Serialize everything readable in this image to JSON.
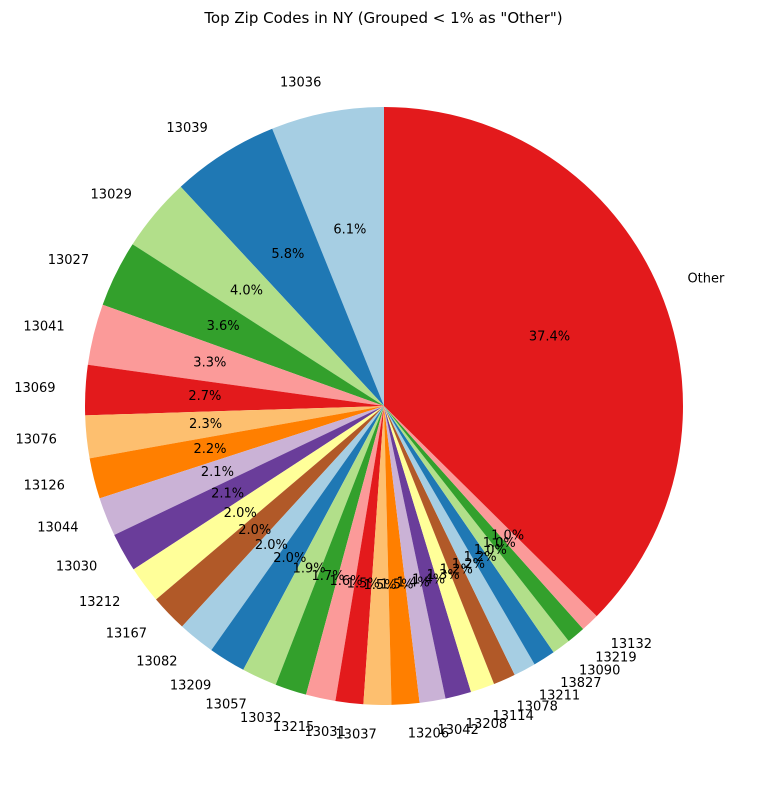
{
  "chart_data": {
    "type": "pie",
    "title": "Top Zip Codes in NY (Grouped < 1% as \"Other\")",
    "start_angle_deg": 90,
    "direction": "counterclockwise",
    "slices": [
      {
        "label": "13036",
        "value": 6.1,
        "pct_label": "6.1%",
        "color": "#a6cee3"
      },
      {
        "label": "13039",
        "value": 5.8,
        "pct_label": "5.8%",
        "color": "#1f78b4"
      },
      {
        "label": "13029",
        "value": 4.0,
        "pct_label": "4.0%",
        "color": "#b2df8a"
      },
      {
        "label": "13027",
        "value": 3.6,
        "pct_label": "3.6%",
        "color": "#33a02c"
      },
      {
        "label": "13041",
        "value": 3.3,
        "pct_label": "3.3%",
        "color": "#fb9a99"
      },
      {
        "label": "13069",
        "value": 2.7,
        "pct_label": "2.7%",
        "color": "#e31a1c"
      },
      {
        "label": "13076",
        "value": 2.3,
        "pct_label": "2.3%",
        "color": "#fdbf6f"
      },
      {
        "label": "13126",
        "value": 2.2,
        "pct_label": "2.2%",
        "color": "#ff7f00"
      },
      {
        "label": "13044",
        "value": 2.1,
        "pct_label": "2.1%",
        "color": "#cab2d6"
      },
      {
        "label": "13030",
        "value": 2.1,
        "pct_label": "2.1%",
        "color": "#6a3d9a"
      },
      {
        "label": "13212",
        "value": 2.0,
        "pct_label": "2.0%",
        "color": "#ffff99"
      },
      {
        "label": "13167",
        "value": 2.0,
        "pct_label": "2.0%",
        "color": "#b15928"
      },
      {
        "label": "13082",
        "value": 2.0,
        "pct_label": "2.0%",
        "color": "#a6cee3"
      },
      {
        "label": "13209",
        "value": 2.0,
        "pct_label": "2.0%",
        "color": "#1f78b4"
      },
      {
        "label": "13057",
        "value": 1.9,
        "pct_label": "1.9%",
        "color": "#b2df8a"
      },
      {
        "label": "13032",
        "value": 1.7,
        "pct_label": "1.7%",
        "color": "#33a02c"
      },
      {
        "label": "13215",
        "value": 1.6,
        "pct_label": "1.6%",
        "color": "#fb9a99"
      },
      {
        "label": "13031",
        "value": 1.5,
        "pct_label": "1.5%",
        "color": "#e31a1c"
      },
      {
        "label": "13037",
        "value": 1.5,
        "pct_label": "1.5%",
        "color": "#fdbf6f"
      },
      {
        "label": "13206",
        "value": 1.5,
        "pct_label": "1.5%",
        "color": "#ff7f00"
      },
      {
        "label": "13042",
        "value": 1.4,
        "pct_label": "1.4%",
        "color": "#cab2d6"
      },
      {
        "label": "13208",
        "value": 1.4,
        "pct_label": "1.4%",
        "color": "#6a3d9a"
      },
      {
        "label": "13114",
        "value": 1.3,
        "pct_label": "1.3%",
        "color": "#ffff99"
      },
      {
        "label": "13078",
        "value": 1.2,
        "pct_label": "1.2%",
        "color": "#b15928"
      },
      {
        "label": "13211",
        "value": 1.2,
        "pct_label": "1.2%",
        "color": "#a6cee3"
      },
      {
        "label": "13827",
        "value": 1.2,
        "pct_label": "1.2%",
        "color": "#1f78b4"
      },
      {
        "label": "13090",
        "value": 1.0,
        "pct_label": "1.0%",
        "color": "#b2df8a"
      },
      {
        "label": "13219",
        "value": 1.0,
        "pct_label": "1.0%",
        "color": "#33a02c"
      },
      {
        "label": "13132",
        "value": 1.0,
        "pct_label": "1.0%",
        "color": "#fb9a99"
      },
      {
        "label": "Other",
        "value": 37.4,
        "pct_label": "37.4%",
        "color": "#e31a1c"
      }
    ]
  }
}
